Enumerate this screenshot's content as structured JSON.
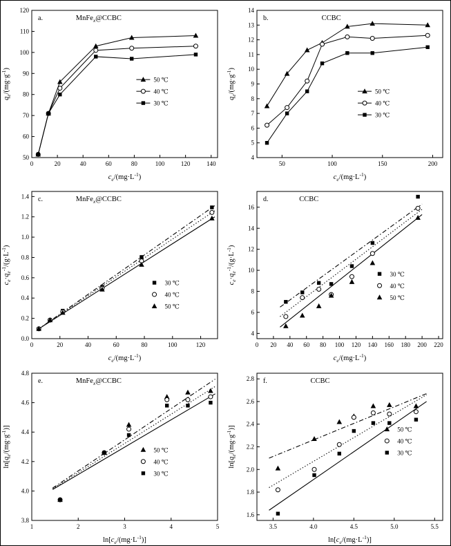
{
  "colors": {
    "foreground": "#000000",
    "background": "#ffffff"
  },
  "chart_data": [
    {
      "id": "a",
      "type": "line",
      "panel_label": "a.",
      "title": "MnFe~x~@CCBC",
      "title_x": 0.36,
      "xlabel": "*c*~e~/(mg·L^-1^)",
      "ylabel": "*q*~e~/(mg·g^-1^)",
      "xlim": [
        0,
        145
      ],
      "ylim": [
        50,
        120
      ],
      "xticks": [
        0,
        20,
        40,
        60,
        80,
        100,
        120,
        140
      ],
      "yticks": [
        50,
        60,
        70,
        80,
        90,
        100,
        110,
        120
      ],
      "series": [
        {
          "name": "50 ℃",
          "marker": "triangle",
          "line": "solid",
          "x": [
            5,
            13,
            22,
            50,
            78,
            128
          ],
          "y": [
            51.5,
            71,
            86,
            103,
            107,
            108
          ]
        },
        {
          "name": "40 ℃",
          "marker": "circle",
          "line": "solid",
          "x": [
            5,
            13,
            22,
            50,
            78,
            128
          ],
          "y": [
            51.5,
            71,
            83,
            101,
            102,
            103
          ]
        },
        {
          "name": "30 ℃",
          "marker": "square",
          "line": "solid",
          "x": [
            5,
            13,
            22,
            50,
            78,
            128
          ],
          "y": [
            51.5,
            71,
            80,
            98,
            97,
            99
          ]
        }
      ],
      "legend": {
        "x": 0.6,
        "y": 0.47,
        "with_line": true,
        "entries": [
          {
            "marker": "triangle",
            "label": "50 ℃"
          },
          {
            "marker": "circle",
            "label": "40 ℃"
          },
          {
            "marker": "square",
            "label": "30 ℃"
          }
        ]
      }
    },
    {
      "id": "b",
      "type": "line",
      "panel_label": "b.",
      "title": "CCBC",
      "title_x": 0.4,
      "xlabel": "*c*~e~/(mg·L^-1^)",
      "ylabel": "*q*~e~/(mg·g^-1^)",
      "xlim": [
        25,
        210
      ],
      "ylim": [
        4,
        14
      ],
      "xticks": [
        50,
        100,
        150,
        200
      ],
      "yticks": [
        4,
        5,
        6,
        7,
        8,
        9,
        10,
        11,
        12,
        13,
        14
      ],
      "series": [
        {
          "name": "50 ℃",
          "marker": "triangle",
          "line": "solid",
          "x": [
            35,
            55,
            75,
            90,
            115,
            140,
            195
          ],
          "y": [
            7.5,
            9.7,
            11.3,
            11.8,
            12.9,
            13.1,
            13.0
          ]
        },
        {
          "name": "40 ℃",
          "marker": "circle",
          "line": "solid",
          "x": [
            35,
            55,
            75,
            90,
            115,
            140,
            195
          ],
          "y": [
            6.2,
            7.4,
            9.2,
            11.7,
            12.2,
            12.1,
            12.3
          ]
        },
        {
          "name": "30 ℃",
          "marker": "square",
          "line": "solid",
          "x": [
            35,
            55,
            75,
            90,
            115,
            140,
            195
          ],
          "y": [
            5.0,
            7.0,
            8.5,
            10.4,
            11.1,
            11.1,
            11.5
          ]
        }
      ],
      "legend": {
        "x": 0.58,
        "y": 0.55,
        "with_line": true,
        "entries": [
          {
            "marker": "triangle",
            "label": "50 ℃"
          },
          {
            "marker": "circle",
            "label": "40 ℃"
          },
          {
            "marker": "square",
            "label": "30 ℃"
          }
        ]
      }
    },
    {
      "id": "c",
      "type": "scatter",
      "panel_label": "c.",
      "title": "MnFe~x~@CCBC",
      "title_x": 0.36,
      "xlabel": "*c*~e~/(mg·L^-1^)",
      "ylabel": "*c*~e~·*q*~e~^-1^/(g·L^-1^)",
      "xlim": [
        0,
        132
      ],
      "ylim": [
        0,
        1.45
      ],
      "xticks": [
        0,
        20,
        40,
        60,
        80,
        100,
        120
      ],
      "yticks": [
        0.0,
        0.2,
        0.4,
        0.6,
        0.8,
        1.0,
        1.2,
        1.4
      ],
      "fit_lines": [
        {
          "style": "dashdot",
          "x1": 4,
          "y1": 0.087,
          "x2": 130,
          "y2": 1.31
        },
        {
          "style": "dotted",
          "x1": 4,
          "y1": 0.088,
          "x2": 130,
          "y2": 1.26
        },
        {
          "style": "solid",
          "x1": 4,
          "y1": 0.088,
          "x2": 130,
          "y2": 1.2
        }
      ],
      "series": [
        {
          "name": "30 ℃",
          "marker": "square",
          "x": [
            5,
            13,
            22,
            50,
            78,
            128
          ],
          "y": [
            0.097,
            0.183,
            0.275,
            0.51,
            0.804,
            1.293
          ]
        },
        {
          "name": "40 ℃",
          "marker": "circle",
          "x": [
            5,
            13,
            22,
            50,
            78,
            128
          ],
          "y": [
            0.097,
            0.183,
            0.265,
            0.495,
            0.765,
            1.243
          ]
        },
        {
          "name": "50 ℃",
          "marker": "triangle",
          "x": [
            5,
            13,
            22,
            50,
            78,
            128
          ],
          "y": [
            0.097,
            0.183,
            0.256,
            0.485,
            0.729,
            1.185
          ]
        }
      ],
      "legend": {
        "x": 0.66,
        "y": 0.62,
        "with_line": false,
        "entries": [
          {
            "marker": "square",
            "label": "30 ℃"
          },
          {
            "marker": "circle",
            "label": "40 ℃"
          },
          {
            "marker": "triangle",
            "label": "50 ℃"
          }
        ]
      }
    },
    {
      "id": "d",
      "type": "scatter",
      "panel_label": "d.",
      "title": "CCBC",
      "title_x": 0.28,
      "xlabel": "*c*~e~/(mg·L^-1^)",
      "ylabel": "*c*~e~·*q*~e~^-1^/(g·L^-1^)",
      "xlim": [
        0,
        225
      ],
      "ylim": [
        3.5,
        17.5
      ],
      "xticks": [
        0,
        20,
        40,
        60,
        80,
        100,
        120,
        140,
        160,
        180,
        200,
        220
      ],
      "yticks": [
        4,
        6,
        8,
        10,
        12,
        14,
        16
      ],
      "fit_lines": [
        {
          "style": "dashdot",
          "x1": 28,
          "y1": 6.5,
          "x2": 200,
          "y2": 16.3
        },
        {
          "style": "dotted",
          "x1": 28,
          "y1": 5.6,
          "x2": 200,
          "y2": 15.8
        },
        {
          "style": "solid",
          "x1": 28,
          "y1": 4.6,
          "x2": 200,
          "y2": 15.3
        }
      ],
      "series": [
        {
          "name": "30 ℃",
          "marker": "square",
          "x": [
            35,
            55,
            75,
            90,
            115,
            140,
            195
          ],
          "y": [
            7.0,
            7.9,
            8.8,
            8.7,
            10.4,
            12.6,
            17.0
          ]
        },
        {
          "name": "40 ℃",
          "marker": "circle",
          "x": [
            35,
            55,
            75,
            90,
            115,
            140,
            195
          ],
          "y": [
            5.6,
            7.4,
            8.2,
            7.7,
            9.4,
            11.6,
            15.9
          ]
        },
        {
          "name": "50 ℃",
          "marker": "triangle",
          "x": [
            35,
            55,
            75,
            90,
            115,
            140,
            195
          ],
          "y": [
            4.7,
            5.7,
            6.6,
            7.6,
            8.9,
            10.7,
            15.0
          ]
        }
      ],
      "legend": {
        "x": 0.66,
        "y": 0.56,
        "with_line": false,
        "entries": [
          {
            "marker": "square",
            "label": "30 ℃"
          },
          {
            "marker": "circle",
            "label": "40 ℃"
          },
          {
            "marker": "triangle",
            "label": "50 ℃"
          }
        ]
      }
    },
    {
      "id": "e",
      "type": "scatter",
      "panel_label": "e.",
      "title": "MnFe~x~@CCBC",
      "title_x": 0.36,
      "xlabel": "ln[*c*~e~/(mg·L^-1^)]",
      "ylabel": "ln[*q*~e~/(mg·g^-1^)]",
      "xlim": [
        1,
        5
      ],
      "ylim": [
        3.8,
        4.8
      ],
      "xticks": [
        1,
        2,
        3,
        4,
        5
      ],
      "yticks": [
        3.8,
        4.0,
        4.2,
        4.4,
        4.6,
        4.8
      ],
      "fit_lines": [
        {
          "style": "dashdot",
          "x1": 1.45,
          "y1": 4.02,
          "x2": 4.95,
          "y2": 4.76
        },
        {
          "style": "dotted",
          "x1": 1.45,
          "y1": 4.015,
          "x2": 4.95,
          "y2": 4.71
        },
        {
          "style": "solid",
          "x1": 1.45,
          "y1": 4.01,
          "x2": 4.95,
          "y2": 4.66
        }
      ],
      "series": [
        {
          "name": "50 ℃",
          "marker": "triangle",
          "x": [
            1.61,
            2.56,
            3.09,
            3.91,
            4.36,
            4.85
          ],
          "y": [
            3.94,
            4.26,
            4.45,
            4.64,
            4.67,
            4.68
          ]
        },
        {
          "name": "40 ℃",
          "marker": "circle",
          "x": [
            1.61,
            2.56,
            3.09,
            3.91,
            4.36,
            4.85
          ],
          "y": [
            3.94,
            4.26,
            4.42,
            4.62,
            4.62,
            4.64
          ]
        },
        {
          "name": "30 ℃",
          "marker": "square",
          "x": [
            1.61,
            2.56,
            3.09,
            3.91,
            4.36,
            4.85
          ],
          "y": [
            3.94,
            4.26,
            4.38,
            4.58,
            4.58,
            4.6
          ]
        }
      ],
      "legend": {
        "x": 0.6,
        "y": 0.52,
        "with_line": false,
        "entries": [
          {
            "marker": "triangle",
            "label": "50 ℃"
          },
          {
            "marker": "circle",
            "label": "40 ℃"
          },
          {
            "marker": "square",
            "label": "30 ℃"
          }
        ]
      }
    },
    {
      "id": "f",
      "type": "scatter",
      "panel_label": "f.",
      "title": "CCBC",
      "title_x": 0.34,
      "xlabel": "ln[*c*~e~/(mg·L^-1^)]",
      "ylabel": "ln[*q*~e~/(mg·g^-1^)]",
      "xlim": [
        3.3,
        5.6
      ],
      "ylim": [
        1.55,
        2.85
      ],
      "xticks": [
        3.5,
        4.0,
        4.5,
        5.0,
        5.5
      ],
      "yticks": [
        1.6,
        1.8,
        2.0,
        2.2,
        2.4,
        2.6,
        2.8
      ],
      "fit_lines": [
        {
          "style": "dashdot",
          "x1": 3.45,
          "y1": 2.1,
          "x2": 5.4,
          "y2": 2.67
        },
        {
          "style": "dotted",
          "x1": 3.45,
          "y1": 1.84,
          "x2": 5.4,
          "y2": 2.66
        },
        {
          "style": "solid",
          "x1": 3.45,
          "y1": 1.64,
          "x2": 5.4,
          "y2": 2.6
        }
      ],
      "series": [
        {
          "name": "50 ℃",
          "marker": "triangle",
          "x": [
            3.56,
            4.01,
            4.32,
            4.5,
            4.74,
            4.94,
            5.27
          ],
          "y": [
            2.01,
            2.27,
            2.42,
            2.47,
            2.56,
            2.57,
            2.56
          ]
        },
        {
          "name": "40 ℃",
          "marker": "circle",
          "x": [
            3.56,
            4.01,
            4.32,
            4.5,
            4.74,
            4.94,
            5.27
          ],
          "y": [
            1.82,
            2.0,
            2.22,
            2.46,
            2.5,
            2.49,
            2.51
          ]
        },
        {
          "name": "30 ℃",
          "marker": "square",
          "x": [
            3.56,
            4.01,
            4.32,
            4.5,
            4.74,
            4.94,
            5.27
          ],
          "y": [
            1.61,
            1.95,
            2.14,
            2.34,
            2.41,
            2.41,
            2.44
          ]
        }
      ],
      "legend": {
        "x": 0.7,
        "y": 0.38,
        "with_line": false,
        "entries": [
          {
            "marker": "triangle",
            "label": "50 ℃"
          },
          {
            "marker": "circle",
            "label": "40 ℃"
          },
          {
            "marker": "square",
            "label": "30 ℃"
          }
        ]
      }
    }
  ]
}
